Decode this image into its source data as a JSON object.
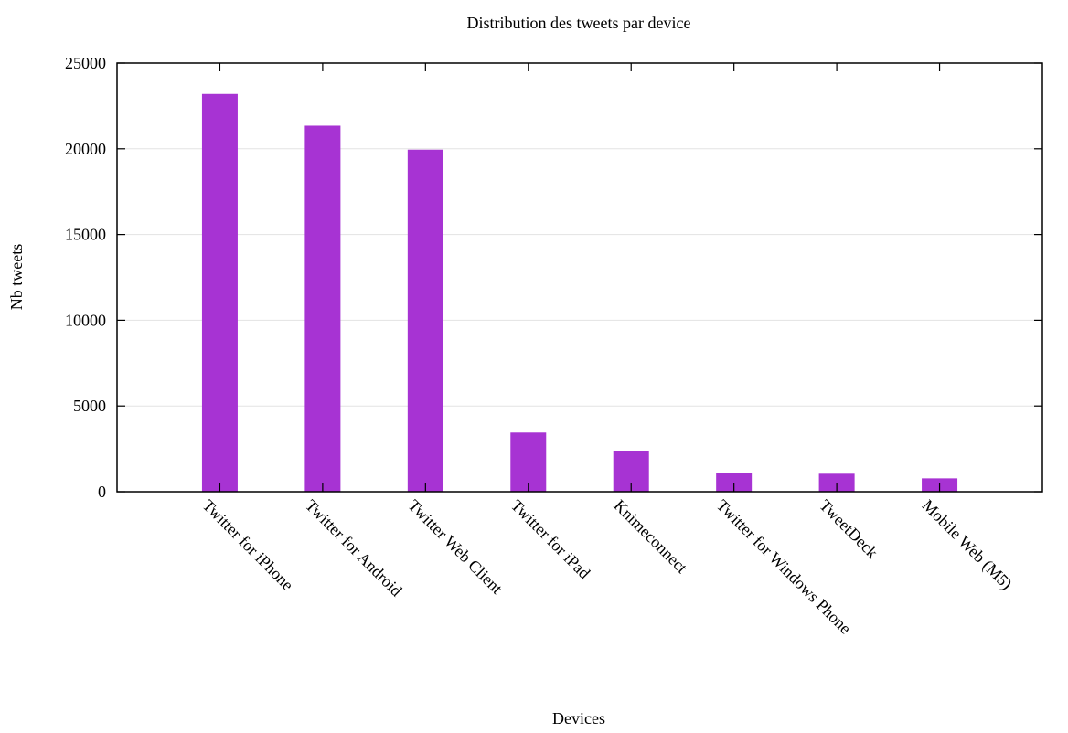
{
  "chart_data": {
    "type": "bar",
    "title": "Distribution des tweets par device",
    "xlabel": "Devices",
    "ylabel": "Nb tweets",
    "ylim": [
      0,
      25000
    ],
    "yticks": [
      "0",
      "5000",
      "10000",
      "15000",
      "20000",
      "25000"
    ],
    "grid": "horizontal",
    "bar_color": "#a733d3",
    "categories": [
      "Twitter for iPhone",
      "Twitter for Android",
      "Twitter Web Client",
      "Twitter for iPad",
      "Knimeconnect",
      "Twitter for Windows Phone",
      "TweetDeck",
      "Mobile Web (M5)"
    ],
    "values": [
      23200,
      21350,
      19950,
      3450,
      2350,
      1100,
      1050,
      780
    ]
  }
}
